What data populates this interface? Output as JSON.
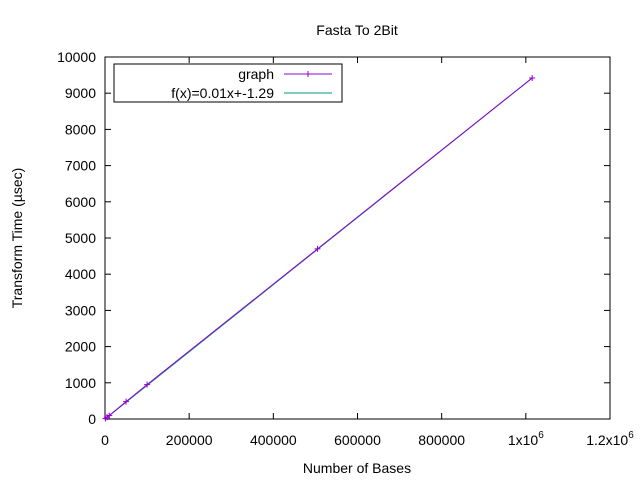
{
  "chart_data": {
    "type": "line",
    "title": "Fasta To 2Bit",
    "xlabel": "Number of Bases",
    "ylabel": "Transform Time (µsec)",
    "xlim": [
      0,
      1200000
    ],
    "ylim": [
      0,
      10000
    ],
    "x_ticks": [
      {
        "value": 0,
        "label": "0"
      },
      {
        "value": 200000,
        "label": "200000"
      },
      {
        "value": 400000,
        "label": "400000"
      },
      {
        "value": 600000,
        "label": "600000"
      },
      {
        "value": 800000,
        "label": "800000"
      },
      {
        "value": 1000000,
        "label": "1x10",
        "exp": "6"
      },
      {
        "value": 1200000,
        "label": "1.2x10",
        "exp": "6"
      }
    ],
    "y_ticks": [
      0,
      1000,
      2000,
      3000,
      4000,
      5000,
      6000,
      7000,
      8000,
      9000,
      10000
    ],
    "grid": false,
    "legend_position": "top-left",
    "series": [
      {
        "name": "graph",
        "kind": "points-line",
        "color": "#9400d3",
        "x": [
          1000,
          5000,
          10000,
          50000,
          100000,
          505000,
          1015000
        ],
        "y": [
          12,
          50,
          95,
          480,
          950,
          4700,
          9420
        ]
      },
      {
        "name": "f(x)=0.01x+-1.29",
        "kind": "fit",
        "color": "#009e73",
        "slope": 0.00928,
        "intercept": -1.29
      }
    ]
  }
}
